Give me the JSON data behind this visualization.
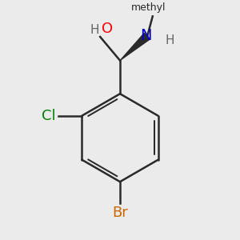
{
  "bg_color": "#ebebeb",
  "bond_color": "#2a2a2a",
  "bond_width": 1.8,
  "atom_colors": {
    "O": "#ff0000",
    "N": "#0000cc",
    "Cl": "#008000",
    "Br": "#cc6600",
    "C": "#2a2a2a",
    "H": "#666666"
  },
  "label_fontsize": 13,
  "small_fontsize": 11,
  "methyl_fontsize": 10
}
